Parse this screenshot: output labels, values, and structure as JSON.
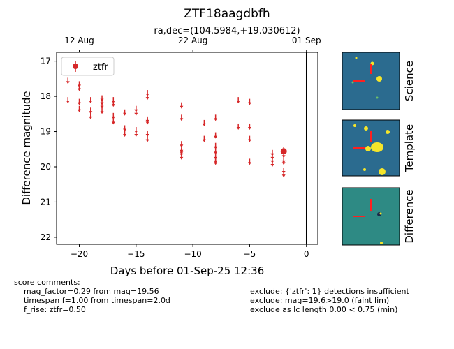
{
  "chart_data": {
    "type": "scatter",
    "title": "ZTF18aagdbfh",
    "subtitle": "ra,dec=(104.5984,+19.030612)",
    "xlabel": "Days before 01-Sep-25 12:36",
    "ylabel": "Difference magnitude",
    "xlim": [
      -22,
      1
    ],
    "ylim": [
      22.2,
      16.75
    ],
    "y_inverted": true,
    "x_ticks": [
      -20,
      -15,
      -10,
      -5,
      0
    ],
    "x_tick_labels": [
      "−20",
      "−15",
      "−10",
      "−5",
      "0"
    ],
    "y_ticks": [
      17,
      18,
      19,
      20,
      21,
      22
    ],
    "y_tick_labels": [
      "17",
      "18",
      "19",
      "20",
      "21",
      "22"
    ],
    "top_axis_ticks": [
      {
        "x": -20,
        "label": "12 Aug"
      },
      {
        "x": -10,
        "label": "22 Aug"
      },
      {
        "x": 0,
        "label": "01 Sep"
      }
    ],
    "vertical_line_x": 0,
    "legend": {
      "label": "ztfr",
      "placement": "top-left"
    },
    "series_color": "#d62728",
    "series": [
      {
        "name": "ztfr",
        "upper_limits": [
          {
            "x": -21,
            "y": 17.55
          },
          {
            "x": -21,
            "y": 18.1
          },
          {
            "x": -20,
            "y": 17.65
          },
          {
            "x": -20,
            "y": 17.75
          },
          {
            "x": -20,
            "y": 18.15
          },
          {
            "x": -20,
            "y": 18.35
          },
          {
            "x": -19,
            "y": 18.1
          },
          {
            "x": -19,
            "y": 18.4
          },
          {
            "x": -19,
            "y": 18.55
          },
          {
            "x": -18,
            "y": 18.05
          },
          {
            "x": -18,
            "y": 18.15
          },
          {
            "x": -18,
            "y": 18.25
          },
          {
            "x": -18,
            "y": 18.4
          },
          {
            "x": -17,
            "y": 18.1
          },
          {
            "x": -17,
            "y": 18.2
          },
          {
            "x": -17,
            "y": 18.55
          },
          {
            "x": -17,
            "y": 18.7
          },
          {
            "x": -16,
            "y": 18.45
          },
          {
            "x": -16,
            "y": 18.9
          },
          {
            "x": -16,
            "y": 19.05
          },
          {
            "x": -15,
            "y": 18.35
          },
          {
            "x": -15,
            "y": 18.45
          },
          {
            "x": -15,
            "y": 18.95
          },
          {
            "x": -15,
            "y": 19.05
          },
          {
            "x": -14,
            "y": 17.9
          },
          {
            "x": -14,
            "y": 18.0
          },
          {
            "x": -14,
            "y": 18.65
          },
          {
            "x": -14,
            "y": 18.7
          },
          {
            "x": -14,
            "y": 19.05
          },
          {
            "x": -14,
            "y": 19.2
          },
          {
            "x": -11,
            "y": 18.25
          },
          {
            "x": -11,
            "y": 18.6
          },
          {
            "x": -11,
            "y": 19.35
          },
          {
            "x": -11,
            "y": 19.5
          },
          {
            "x": -11,
            "y": 19.55
          },
          {
            "x": -11,
            "y": 19.6
          },
          {
            "x": -11,
            "y": 19.7
          },
          {
            "x": -9,
            "y": 18.75
          },
          {
            "x": -9,
            "y": 19.2
          },
          {
            "x": -8,
            "y": 18.6
          },
          {
            "x": -8,
            "y": 19.1
          },
          {
            "x": -8,
            "y": 19.4
          },
          {
            "x": -8,
            "y": 19.55
          },
          {
            "x": -8,
            "y": 19.7
          },
          {
            "x": -8,
            "y": 19.8
          },
          {
            "x": -8,
            "y": 19.85
          },
          {
            "x": -6,
            "y": 18.1
          },
          {
            "x": -6,
            "y": 18.85
          },
          {
            "x": -5,
            "y": 18.15
          },
          {
            "x": -5,
            "y": 18.85
          },
          {
            "x": -5,
            "y": 19.2
          },
          {
            "x": -5,
            "y": 19.85
          },
          {
            "x": -3,
            "y": 19.6
          },
          {
            "x": -3,
            "y": 19.7
          },
          {
            "x": -3,
            "y": 19.8
          },
          {
            "x": -3,
            "y": 19.9
          },
          {
            "x": -2,
            "y": 19.65
          },
          {
            "x": -2,
            "y": 19.8
          },
          {
            "x": -2,
            "y": 19.85
          },
          {
            "x": -2,
            "y": 20.1
          },
          {
            "x": -2,
            "y": 20.2
          }
        ],
        "detections": [
          {
            "x": -2,
            "y": 19.56,
            "err": 0.12
          }
        ]
      }
    ]
  },
  "cutouts": [
    {
      "label": "Science",
      "colors": {
        "bg": "#2b6b8f",
        "accent": "#f5e52a",
        "marker": "#ff2020"
      }
    },
    {
      "label": "Template",
      "colors": {
        "bg": "#2b6b8f",
        "accent": "#f5e52a",
        "marker": "#ff2020"
      }
    },
    {
      "label": "Difference",
      "colors": {
        "bg": "#2e8a84",
        "accent": "#f5e52a",
        "marker": "#ff2020"
      }
    }
  ],
  "comments": {
    "header": "score comments:",
    "left": [
      "mag_factor=0.29 from mag=19.56",
      "timespan f=1.00 from timespan=2.0d",
      "f_rise: ztfr=0.50"
    ],
    "right": [
      "exclude: {'ztfr': 1} detections insufficient",
      "exclude: mag=19.6>19.0 (faint lim)",
      "exclude as lc length 0.00 < 0.75 (min)"
    ]
  }
}
